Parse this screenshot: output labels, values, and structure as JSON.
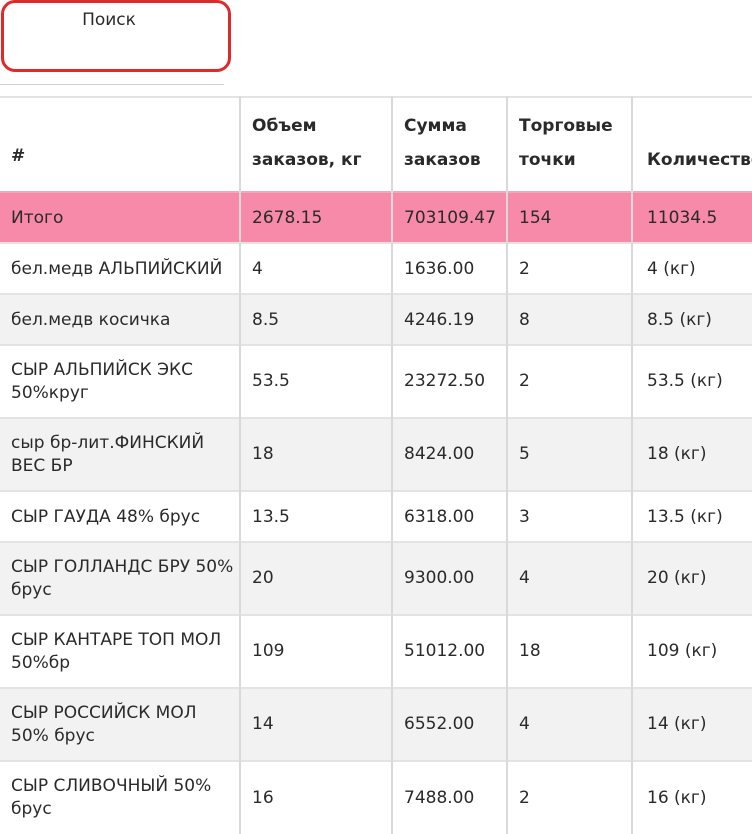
{
  "search": {
    "label": "Поиск"
  },
  "table": {
    "headers": {
      "index": "#",
      "volume_line1": "Объем",
      "volume_line2": "заказов, кг",
      "sum_line1": "Сумма",
      "sum_line2": "заказов",
      "points_line1": "Торговые",
      "points_line2": "точки",
      "qty": "Количество"
    },
    "total": {
      "label": "Итого",
      "volume": "2678.15",
      "sum": "703109.47",
      "points": "154",
      "qty": "11034.5"
    },
    "rows": [
      {
        "name": "бел.медв АЛЬПИЙСКИЙ",
        "volume": "4",
        "sum": "1636.00",
        "points": "2",
        "qty": "4 (кг)"
      },
      {
        "name": "бел.медв косичка",
        "volume": "8.5",
        "sum": "4246.19",
        "points": "8",
        "qty": "8.5 (кг)"
      },
      {
        "name": "СЫР АЛЬПИЙСК ЭКС 50%круг",
        "volume": "53.5",
        "sum": "23272.50",
        "points": "2",
        "qty": "53.5 (кг)"
      },
      {
        "name": "сыр бр-лит.ФИНСКИЙ ВЕС БР",
        "volume": "18",
        "sum": "8424.00",
        "points": "5",
        "qty": "18 (кг)"
      },
      {
        "name": "СЫР ГАУДА 48% брус",
        "volume": "13.5",
        "sum": "6318.00",
        "points": "3",
        "qty": "13.5 (кг)"
      },
      {
        "name": "СЫР ГОЛЛАНДС БРУ 50% брус",
        "volume": "20",
        "sum": "9300.00",
        "points": "4",
        "qty": "20 (кг)"
      },
      {
        "name": "СЫР КАНТАРЕ ТОП МОЛ 50%бр",
        "volume": "109",
        "sum": "51012.00",
        "points": "18",
        "qty": "109 (кг)"
      },
      {
        "name": "СЫР РОССИЙСК МОЛ 50% брус",
        "volume": "14",
        "sum": "6552.00",
        "points": "4",
        "qty": "14 (кг)"
      },
      {
        "name": "СЫР СЛИВОЧНЫЙ 50% брус",
        "volume": "16",
        "sum": "7488.00",
        "points": "2",
        "qty": "16 (кг)"
      }
    ]
  }
}
